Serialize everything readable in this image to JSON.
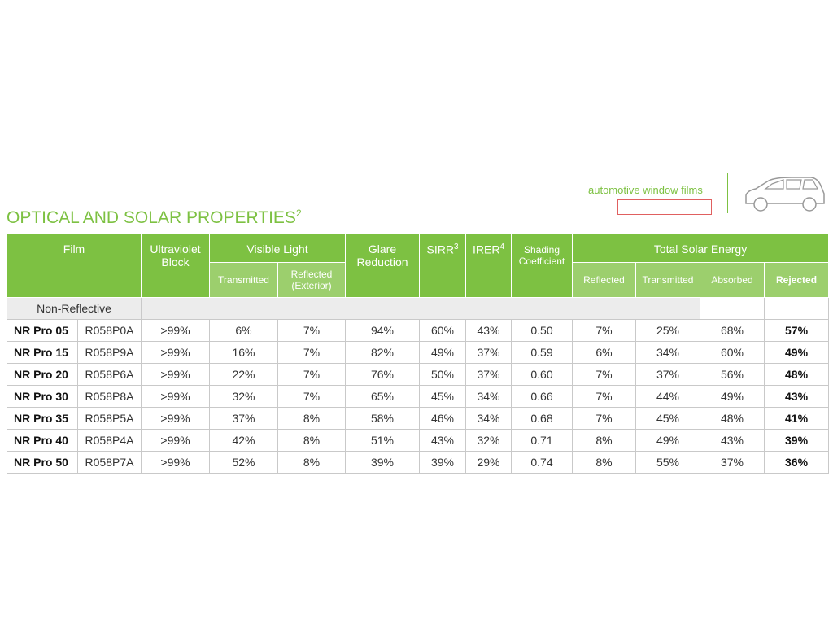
{
  "brand_label": "automotive window films",
  "title": {
    "text": "OPTICAL AND SOLAR PROPERTIES",
    "sup": "2"
  },
  "table": {
    "header": {
      "film": "Film",
      "uv": "Ultraviolet Block",
      "visible": "Visible Light",
      "visible_sub": [
        "Transmitted",
        "Reflected (Exterior)"
      ],
      "glare": "Glare Reduction",
      "sirr": "SIRR",
      "sirr_sup": "3",
      "irer": "IRER",
      "irer_sup": "4",
      "shading": "Shading Coefficient",
      "solar": "Total Solar Energy",
      "solar_sub": [
        "Reflected",
        "Transmitted",
        "Absorbed",
        "Rejected"
      ]
    },
    "group": "Non-Reflective",
    "rows": [
      {
        "film": "NR Pro 05",
        "code": "R058P0A",
        "values": [
          ">99%",
          "6%",
          "7%",
          "94%",
          "60%",
          "43%",
          "0.50",
          "7%",
          "25%",
          "68%",
          "57%"
        ]
      },
      {
        "film": "NR Pro 15",
        "code": "R058P9A",
        "values": [
          ">99%",
          "16%",
          "7%",
          "82%",
          "49%",
          "37%",
          "0.59",
          "6%",
          "34%",
          "60%",
          "49%"
        ]
      },
      {
        "film": "NR Pro 20",
        "code": "R058P6A",
        "values": [
          ">99%",
          "22%",
          "7%",
          "76%",
          "50%",
          "37%",
          "0.60",
          "7%",
          "37%",
          "56%",
          "48%"
        ]
      },
      {
        "film": "NR Pro 30",
        "code": "R058P8A",
        "values": [
          ">99%",
          "32%",
          "7%",
          "65%",
          "45%",
          "34%",
          "0.66",
          "7%",
          "44%",
          "49%",
          "43%"
        ]
      },
      {
        "film": "NR Pro 35",
        "code": "R058P5A",
        "values": [
          ">99%",
          "37%",
          "8%",
          "58%",
          "46%",
          "34%",
          "0.68",
          "7%",
          "45%",
          "48%",
          "41%"
        ]
      },
      {
        "film": "NR Pro 40",
        "code": "R058P4A",
        "values": [
          ">99%",
          "42%",
          "8%",
          "51%",
          "43%",
          "32%",
          "0.71",
          "8%",
          "49%",
          "43%",
          "39%"
        ]
      },
      {
        "film": "NR Pro 50",
        "code": "R058P7A",
        "values": [
          ">99%",
          "52%",
          "8%",
          "39%",
          "39%",
          "29%",
          "0.74",
          "8%",
          "55%",
          "37%",
          "36%"
        ]
      }
    ]
  }
}
